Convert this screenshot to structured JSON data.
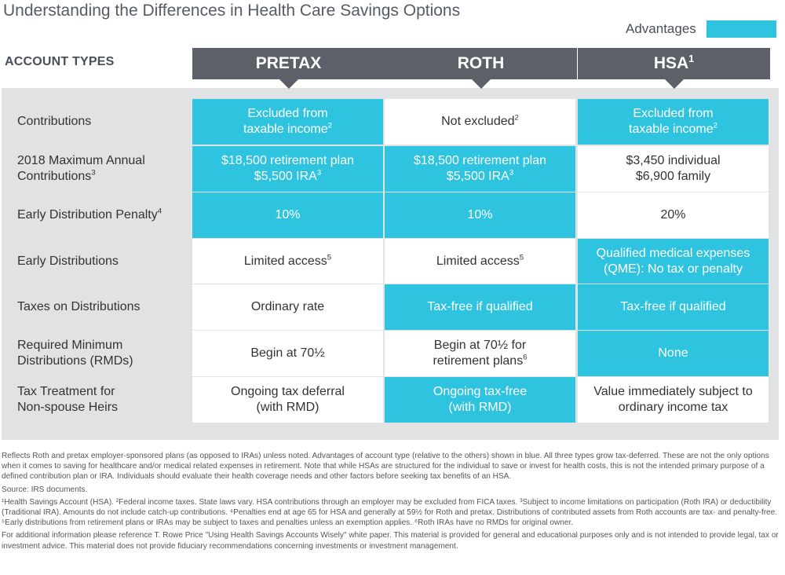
{
  "title": "Understanding the Differences in Health Care Savings Options",
  "legend": {
    "label": "Advantages",
    "color": "#2ec4e0"
  },
  "account_types_label": "ACCOUNT TYPES",
  "columns": [
    {
      "label": "PRETAX",
      "sup": ""
    },
    {
      "label": "ROTH",
      "sup": ""
    },
    {
      "label": "HSA",
      "sup": "1"
    }
  ],
  "rows": [
    {
      "label": "Contributions",
      "label_sup": "",
      "cells": [
        {
          "text": "Excluded from\ntaxable income",
          "sup": "2",
          "adv": true
        },
        {
          "text": "Not excluded",
          "sup": "2",
          "adv": false
        },
        {
          "text": "Excluded from\ntaxable income",
          "sup": "2",
          "adv": true
        }
      ]
    },
    {
      "label": "2018 Maximum Annual\nContributions",
      "label_sup": "3",
      "cells": [
        {
          "text": "$18,500 retirement plan\n$5,500 IRA",
          "sup": "3",
          "adv": true
        },
        {
          "text": "$18,500 retirement plan\n$5,500 IRA",
          "sup": "3",
          "adv": true
        },
        {
          "text": "$3,450 individual\n$6,900 family",
          "sup": "",
          "adv": false
        }
      ]
    },
    {
      "label": "Early Distribution Penalty",
      "label_sup": "4",
      "cells": [
        {
          "text": "10%",
          "sup": "",
          "adv": true
        },
        {
          "text": "10%",
          "sup": "",
          "adv": true
        },
        {
          "text": "20%",
          "sup": "",
          "adv": false
        }
      ]
    },
    {
      "label": "Early Distributions",
      "label_sup": "",
      "cells": [
        {
          "text": "Limited access",
          "sup": "5",
          "adv": false
        },
        {
          "text": "Limited access",
          "sup": "5",
          "adv": false
        },
        {
          "text": "Qualified medical expenses\n(QME): No tax or penalty",
          "sup": "",
          "adv": true
        }
      ]
    },
    {
      "label": "Taxes on Distributions",
      "label_sup": "",
      "cells": [
        {
          "text": "Ordinary rate",
          "sup": "",
          "adv": false
        },
        {
          "text": "Tax-free if qualified",
          "sup": "",
          "adv": true
        },
        {
          "text": "Tax-free if qualified",
          "sup": "",
          "adv": true
        }
      ]
    },
    {
      "label": "Required Minimum\nDistributions (RMDs)",
      "label_sup": "",
      "cells": [
        {
          "text": "Begin at 70½",
          "sup": "",
          "adv": false
        },
        {
          "text": "Begin at 70½ for\nretirement plans",
          "sup": "6",
          "adv": false
        },
        {
          "text": "None",
          "sup": "",
          "adv": true
        }
      ]
    },
    {
      "label": "Tax Treatment for\nNon-spouse Heirs",
      "label_sup": "",
      "cells": [
        {
          "text": "Ongoing tax deferral\n(with RMD)",
          "sup": "",
          "adv": false
        },
        {
          "text": "Ongoing tax-free\n(with RMD)",
          "sup": "",
          "adv": true
        },
        {
          "text": "Value immediately subject to\nordinary income tax",
          "sup": "",
          "adv": false
        }
      ]
    }
  ],
  "footnotes": [
    "Reflects Roth and pretax employer-sponsored plans (as opposed to IRAs) unless noted. Advantages of account type (relative to the others) shown in blue. All three types grow tax-deferred. These are not the only options when it comes to saving for healthcare and/or medical related expenses in retirement. Note that while HSAs are structured for the individual to save or invest for health costs, this is not the intended primary purpose of a defined contribution plan or IRA. Individuals should evaluate their health coverage needs and other factors before seeking tax benefits of an HSA.",
    "Source: IRS documents.",
    "¹Health Savings Account (HSA). ²Federal income taxes. State laws vary. HSA contributions through an employer may be excluded from FICA taxes. ³Subject to income limitations on participation (Roth IRA) or deductibility (Traditional IRA). Amounts do not include catch-up contributions. ⁴Penalties end at age 65 for HSA and generally at 59½ for Roth and pretax. Distributions of contributed assets from Roth accounts are tax- and penalty-free. ⁵Early distributions from retirement plans or IRAs may be subject to taxes and penalties unless an exemption applies. ⁶Roth IRAs have no RMDs for original owner.",
    "For additional information please reference T. Rowe Price \"Using Health Savings Accounts Wisely\" white paper. This material is provided for general and educational purposes only and is not intended to provide legal, tax or investment advice. This material does not provide fiduciary recommendations concerning investments or investment management."
  ]
}
